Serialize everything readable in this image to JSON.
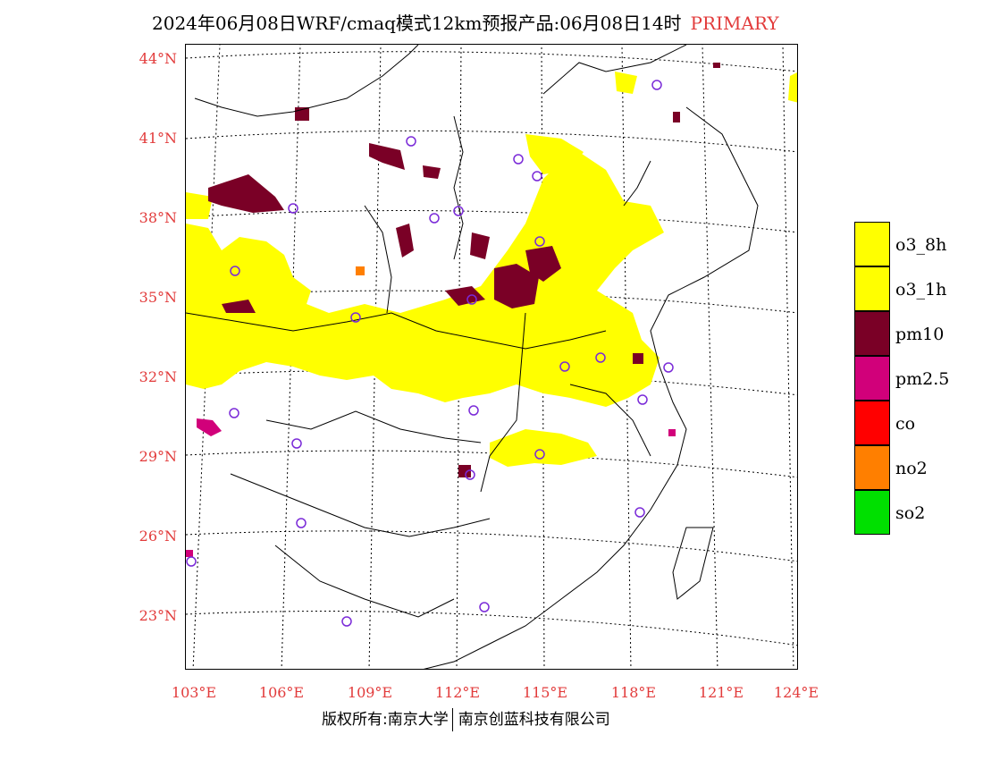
{
  "title": {
    "main": "2024年06月08日WRF/cmaq模式12km预报产品:06月08日14时",
    "tag": "PRIMARY"
  },
  "axes": {
    "latitudes": [
      "44°N",
      "41°N",
      "38°N",
      "35°N",
      "32°N",
      "29°N",
      "26°N",
      "23°N"
    ],
    "longitudes": [
      "103°E",
      "106°E",
      "109°E",
      "112°E",
      "115°E",
      "118°E",
      "121°E",
      "124°E"
    ]
  },
  "legend": [
    {
      "label": "o3_8h",
      "color": "#ffff00"
    },
    {
      "label": "o3_1h",
      "color": "#ffff00"
    },
    {
      "label": "pm10",
      "color": "#7a0026"
    },
    {
      "label": "pm2.5",
      "color": "#d1007a"
    },
    {
      "label": "co",
      "color": "#ff0000"
    },
    {
      "label": "no2",
      "color": "#ff7f00"
    },
    {
      "label": "so2",
      "color": "#00e000"
    }
  ],
  "footer": {
    "left": "版权所有:南京大学",
    "right": "南京创蓝科技有限公司"
  },
  "colors": {
    "accent": "#e23b3b",
    "o3": "#ffff00",
    "pm10": "#7a0026",
    "pm25": "#d1007a",
    "no2": "#ff7f00",
    "station_ring": "#7a2ad8"
  }
}
